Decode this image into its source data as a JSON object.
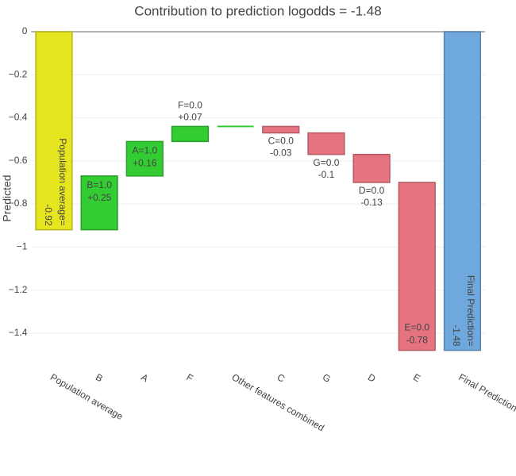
{
  "chart_data": {
    "type": "waterfall",
    "title": "Contribution to prediction logodds = -1.48",
    "y_label": "Predicted",
    "categories": [
      "Population average",
      "B",
      "A",
      "F",
      "Other features combined",
      "C",
      "G",
      "D",
      "E",
      "Final Prediction"
    ],
    "measure": [
      "absolute",
      "relative",
      "relative",
      "relative",
      "relative",
      "relative",
      "relative",
      "relative",
      "relative",
      "total"
    ],
    "values": [
      -0.92,
      0.25,
      0.16,
      0.07,
      0,
      -0.03,
      -0.1,
      -0.13,
      -0.78,
      -1.48
    ],
    "feature_labels": [
      "Population average=",
      "B=1.0",
      "A=1.0",
      "F=0.0",
      null,
      "C=0.0",
      "G=0.0",
      "D=0.0",
      "E=0.0",
      "Final Prediction="
    ],
    "value_labels": [
      "-0.92",
      "+0.25",
      "+0.16",
      "+0.07",
      null,
      "-0.03",
      "-0.1",
      "-0.13",
      "-0.78",
      "-1.48"
    ],
    "colors": {
      "absolute": "#e6e620",
      "increase": "#33cc33",
      "decrease": "#e57380",
      "total": "#6fa8dc"
    },
    "ylim": [
      -1.5,
      0
    ],
    "yticks": [
      0,
      {
        "value": -0.2,
        "label": "−0.2"
      },
      {
        "value": -0.4,
        "label": "−0.4"
      },
      {
        "value": -0.6,
        "label": "−0.6"
      },
      {
        "value": -0.8,
        "label": "−0.8"
      },
      {
        "value": -1,
        "label": "−1"
      },
      {
        "value": -1.2,
        "label": "−1.2"
      },
      {
        "value": -1.4,
        "label": "−1.4"
      }
    ],
    "grid": true
  }
}
